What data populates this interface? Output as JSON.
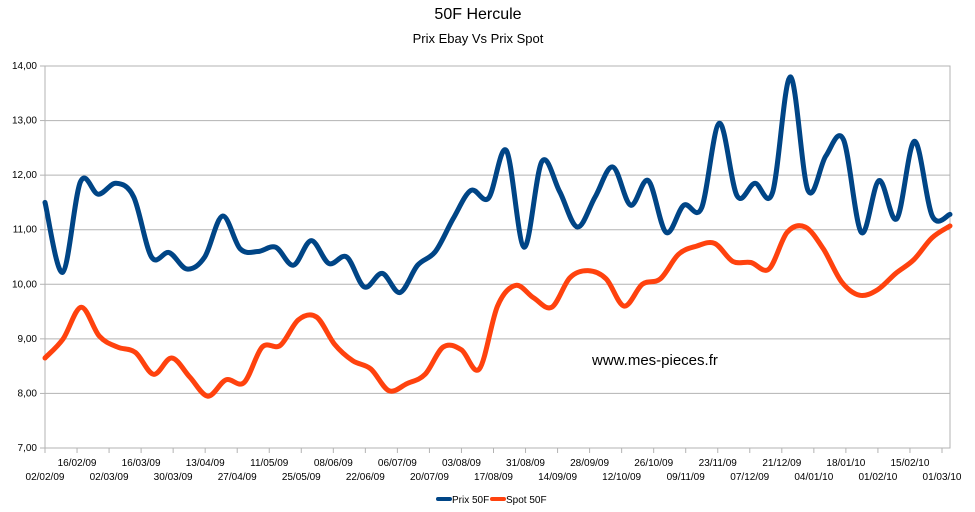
{
  "chart_data": {
    "type": "line",
    "title": "50F Hercule",
    "subtitle": "Prix Ebay Vs Prix Spot",
    "xlabel": "",
    "ylabel": "",
    "ylim": [
      7,
      14
    ],
    "yticks": [
      "7,00",
      "8,00",
      "9,00",
      "10,00",
      "11,00",
      "12,00",
      "13,00",
      "14,00"
    ],
    "grid": true,
    "legend_position": "bottom",
    "x_tick_labels": [
      "02/02/09",
      "16/02/09",
      "02/03/09",
      "16/03/09",
      "30/03/09",
      "13/04/09",
      "27/04/09",
      "11/05/09",
      "25/05/09",
      "08/06/09",
      "22/06/09",
      "06/07/09",
      "20/07/09",
      "03/08/09",
      "17/08/09",
      "31/08/09",
      "14/09/09",
      "28/09/09",
      "12/10/09",
      "26/10/09",
      "09/11/09",
      "23/11/09",
      "07/12/09",
      "21/12/09",
      "04/01/10",
      "18/01/10",
      "01/02/10",
      "15/02/10",
      "01/03/10"
    ],
    "watermark": "www.mes-pieces.fr",
    "series": [
      {
        "name": "Prix 50F",
        "color": "#004586",
        "values": [
          11.5,
          10.22,
          11.88,
          11.65,
          11.85,
          11.6,
          10.5,
          10.58,
          10.28,
          10.5,
          11.25,
          10.65,
          10.6,
          10.68,
          10.35,
          10.8,
          10.38,
          10.5,
          9.95,
          10.2,
          9.85,
          10.35,
          10.6,
          11.2,
          11.72,
          11.58,
          12.45,
          10.68,
          12.25,
          11.7,
          11.05,
          11.6,
          12.15,
          11.45,
          11.9,
          10.95,
          11.45,
          11.4,
          12.95,
          11.62,
          11.85,
          11.68,
          13.8,
          11.72,
          12.35,
          12.65,
          10.95,
          11.9,
          11.2,
          12.62,
          11.25,
          11.28
        ]
      },
      {
        "name": "Spot 50F",
        "color": "#ff420e",
        "values": [
          8.65,
          9.0,
          9.58,
          9.05,
          8.85,
          8.75,
          8.35,
          8.65,
          8.3,
          7.95,
          8.25,
          8.2,
          8.85,
          8.88,
          9.35,
          9.4,
          8.9,
          8.6,
          8.45,
          8.05,
          8.18,
          8.35,
          8.85,
          8.8,
          8.45,
          9.6,
          9.98,
          9.75,
          9.58,
          10.12,
          10.25,
          10.1,
          9.6,
          10.0,
          10.1,
          10.55,
          10.7,
          10.75,
          10.42,
          10.4,
          10.28,
          10.95,
          11.05,
          10.65,
          10.05,
          9.8,
          9.9,
          10.2,
          10.45,
          10.85,
          11.07
        ]
      }
    ]
  }
}
